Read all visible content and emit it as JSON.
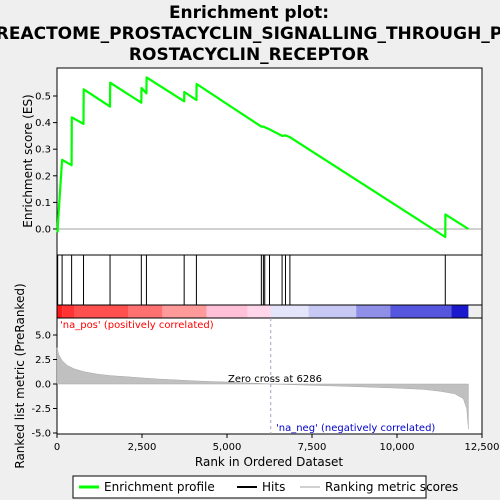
{
  "title_lines": [
    "Enrichment plot:",
    "REACTOME_PROSTACYCLIN_SIGNALLING_THROUGH_P",
    "ROSTACYCLIN_RECEPTOR"
  ],
  "colors": {
    "profile": "#00ff00",
    "hits": "#000000",
    "metric_fill": "#c0c0c0",
    "zero_cross_line": "#a0a0c0",
    "na_pos": "#ff0000",
    "na_neg": "#0000cc",
    "heat_pos_strong": "#ff2020",
    "heat_neg_strong": "#1010cc"
  },
  "top_panel": {
    "ylabel": "Enrichment score (ES)",
    "yticks": [
      "0.0",
      "0.1",
      "0.2",
      "0.3",
      "0.4",
      "0.5"
    ]
  },
  "bottom_panel": {
    "ylabel_line1": "Ranked list metric (PreRanked)",
    "xlabel": "Rank in Ordered Dataset",
    "yticks": [
      "-5.0",
      "-2.5",
      "0.0",
      "2.5",
      "5.0"
    ],
    "xticks": [
      "0",
      "2,500",
      "5,000",
      "7,500",
      "10,000",
      "12,500"
    ],
    "na_pos_label": "'na_pos' (positively correlated)",
    "na_neg_label": "'na_neg' (negatively correlated)",
    "zero_cross_label": "Zero cross at 6286"
  },
  "legend": {
    "profile": "Enrichment profile",
    "hits": "Hits",
    "metric": "Ranking metric scores"
  },
  "chart_data": {
    "type": "line",
    "title": "Enrichment plot: REACTOME_PROSTACYCLIN_SIGNALLING_THROUGH_PROSTACYCLIN_RECEPTOR",
    "xlabel": "Rank in Ordered Dataset",
    "ylabel": "Enrichment score (ES)",
    "xlim": [
      0,
      12500
    ],
    "ylim_es": [
      -0.05,
      0.62
    ],
    "ylim_metric": [
      -5.0,
      5.0
    ],
    "n_genes": 12100,
    "zero_cross": 6286,
    "hits": [
      20,
      150,
      430,
      780,
      1560,
      2480,
      2630,
      3740,
      4100,
      6010,
      6070,
      6110,
      6250,
      6620,
      6720,
      6850,
      11420
    ],
    "es_profile": [
      [
        0,
        0.0
      ],
      [
        20,
        -0.01
      ],
      [
        25,
        0.02
      ],
      [
        150,
        0.26
      ],
      [
        430,
        0.24
      ],
      [
        435,
        0.42
      ],
      [
        780,
        0.395
      ],
      [
        785,
        0.525
      ],
      [
        1560,
        0.46
      ],
      [
        1565,
        0.55
      ],
      [
        2480,
        0.475
      ],
      [
        2485,
        0.53
      ],
      [
        2630,
        0.51
      ],
      [
        2635,
        0.57
      ],
      [
        3740,
        0.48
      ],
      [
        3745,
        0.515
      ],
      [
        4100,
        0.485
      ],
      [
        4105,
        0.545
      ],
      [
        6010,
        0.385
      ],
      [
        6070,
        0.385
      ],
      [
        6250,
        0.375
      ],
      [
        6620,
        0.35
      ],
      [
        6720,
        0.352
      ],
      [
        6850,
        0.345
      ],
      [
        11420,
        -0.03
      ],
      [
        11425,
        0.055
      ],
      [
        12100,
        0.0
      ]
    ],
    "metric_profile": [
      [
        0,
        3.7
      ],
      [
        50,
        3.0
      ],
      [
        150,
        2.4
      ],
      [
        300,
        1.9
      ],
      [
        500,
        1.55
      ],
      [
        800,
        1.25
      ],
      [
        1200,
        1.0
      ],
      [
        1600,
        0.85
      ],
      [
        2000,
        0.75
      ],
      [
        2500,
        0.62
      ],
      [
        3000,
        0.5
      ],
      [
        3500,
        0.42
      ],
      [
        4000,
        0.33
      ],
      [
        4500,
        0.26
      ],
      [
        5000,
        0.2
      ],
      [
        5500,
        0.12
      ],
      [
        6000,
        0.05
      ],
      [
        6286,
        0.0
      ],
      [
        7000,
        -0.08
      ],
      [
        8000,
        -0.18
      ],
      [
        9000,
        -0.3
      ],
      [
        10000,
        -0.42
      ],
      [
        10800,
        -0.55
      ],
      [
        11300,
        -0.75
      ],
      [
        11700,
        -1.0
      ],
      [
        11950,
        -1.5
      ],
      [
        12050,
        -2.5
      ],
      [
        12100,
        -4.6
      ]
    ]
  }
}
